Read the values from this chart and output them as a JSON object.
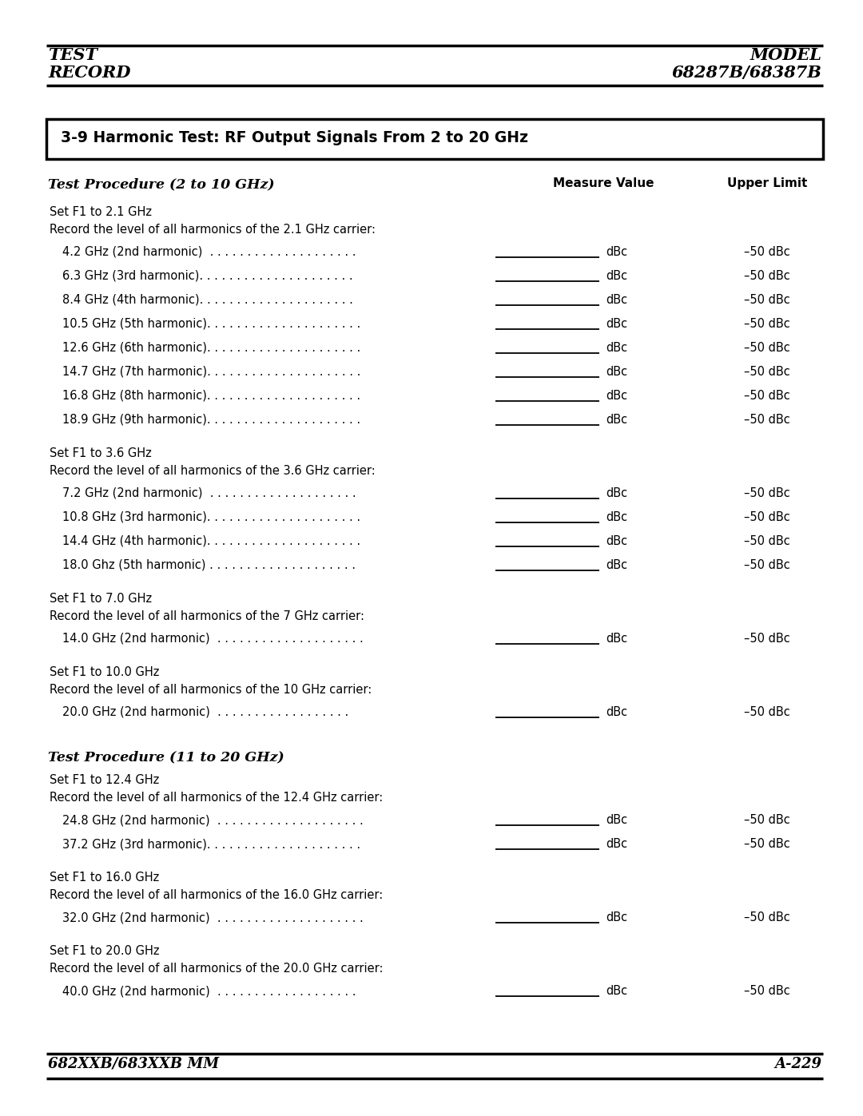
{
  "page_title_left_line1": "TEST",
  "page_title_left_line2": "RECORD",
  "page_title_right_line1": "MODEL",
  "page_title_right_line2": "68287B/68387B",
  "section_title": "3-9 Harmonic Test: RF Output Signals From 2 to 20 GHz",
  "footer_left": "682XXB/683XXB MM",
  "footer_right": "A-229",
  "col_header_mv": "Measure Value",
  "col_header_ul": "Upper Limit",
  "subsection1_title": "Test Procedure (2 to 10 GHz)",
  "subsection2_title": "Test Procedure (11 to 20 GHz)",
  "groups_1": [
    {
      "set_line": "Set F1 to 2.1 GHz",
      "record_line": "Record the level of all harmonics of the 2.1 GHz carrier:",
      "entries": [
        {
          "label": "4.2 GHz (2nd harmonic)  . . . . . . . . . . . . . . . . . . . .",
          "upper": "–50 dBc"
        },
        {
          "label": "6.3 GHz (3rd harmonic). . . . . . . . . . . . . . . . . . . . .",
          "upper": "–50 dBc"
        },
        {
          "label": "8.4 GHz (4th harmonic). . . . . . . . . . . . . . . . . . . . .",
          "upper": "–50 dBc"
        },
        {
          "label": "10.5 GHz (5th harmonic). . . . . . . . . . . . . . . . . . . . .",
          "upper": "–50 dBc"
        },
        {
          "label": "12.6 GHz (6th harmonic). . . . . . . . . . . . . . . . . . . . .",
          "upper": "–50 dBc"
        },
        {
          "label": "14.7 GHz (7th harmonic). . . . . . . . . . . . . . . . . . . . .",
          "upper": "–50 dBc"
        },
        {
          "label": "16.8 GHz (8th harmonic). . . . . . . . . . . . . . . . . . . . .",
          "upper": "–50 dBc"
        },
        {
          "label": "18.9 GHz (9th harmonic). . . . . . . . . . . . . . . . . . . . .",
          "upper": "–50 dBc"
        }
      ]
    },
    {
      "set_line": "Set F1 to 3.6 GHz",
      "record_line": "Record the level of all harmonics of the 3.6 GHz carrier:",
      "entries": [
        {
          "label": "7.2 GHz (2nd harmonic)  . . . . . . . . . . . . . . . . . . . .",
          "upper": "–50 dBc"
        },
        {
          "label": "10.8 GHz (3rd harmonic). . . . . . . . . . . . . . . . . . . . .",
          "upper": "–50 dBc"
        },
        {
          "label": "14.4 GHz (4th harmonic). . . . . . . . . . . . . . . . . . . . .",
          "upper": "–50 dBc"
        },
        {
          "label": "18.0 Ghz (5th harmonic) . . . . . . . . . . . . . . . . . . . .",
          "upper": "–50 dBc"
        }
      ]
    },
    {
      "set_line": "Set F1 to 7.0 GHz",
      "record_line": "Record the level of all harmonics of the 7 GHz carrier:",
      "entries": [
        {
          "label": "14.0 GHz (2nd harmonic)  . . . . . . . . . . . . . . . . . . . .",
          "upper": "–50 dBc"
        }
      ]
    },
    {
      "set_line": "Set F1 to 10.0 GHz",
      "record_line": "Record the level of all harmonics of the 10 GHz carrier:",
      "entries": [
        {
          "label": "20.0 GHz (2nd harmonic)  . . . . . . . . . . . . . . . . . .",
          "upper": "–50 dBc"
        }
      ]
    }
  ],
  "groups_2": [
    {
      "set_line": "Set F1 to 12.4 GHz",
      "record_line": "Record the level of all harmonics of the 12.4 GHz carrier:",
      "entries": [
        {
          "label": "24.8 GHz (2nd harmonic)  . . . . . . . . . . . . . . . . . . . .",
          "upper": "–50 dBc"
        },
        {
          "label": "37.2 GHz (3rd harmonic). . . . . . . . . . . . . . . . . . . . .",
          "upper": "–50 dBc"
        }
      ]
    },
    {
      "set_line": "Set F1 to 16.0 GHz",
      "record_line": "Record the level of all harmonics of the 16.0 GHz carrier:",
      "entries": [
        {
          "label": "32.0 GHz (2nd harmonic)  . . . . . . . . . . . . . . . . . . . .",
          "upper": "–50 dBc"
        }
      ]
    },
    {
      "set_line": "Set F1 to 20.0 GHz",
      "record_line": "Record the level of all harmonics of the 20.0 GHz carrier:",
      "entries": [
        {
          "label": "40.0 GHz (2nd harmonic)  . . . . . . . . . . . . . . . . . . .",
          "upper": "–50 dBc"
        }
      ]
    }
  ],
  "bg": "#ffffff",
  "fg": "#000000"
}
